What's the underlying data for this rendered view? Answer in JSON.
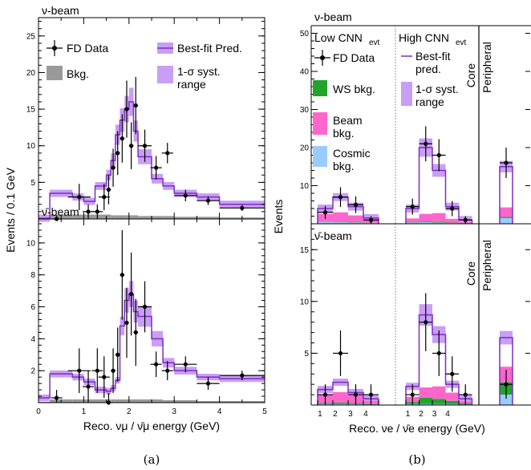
{
  "chart_data": [
    {
      "id": "a",
      "type": "step-histogram with points",
      "caption": "(a)",
      "xlabel": "Reco. νμ / ν̄μ energy (GeV)",
      "ylabel": "Events / 0.1 GeV",
      "xlim": [
        0,
        5
      ],
      "xticks": [
        "0",
        "1",
        "2",
        "3",
        "4",
        "5"
      ],
      "legend": {
        "data": "FD Data",
        "pred": "Best-fit Pred.",
        "bkg": "Bkg.",
        "syst": "1-σ syst.",
        "syst2": "range"
      },
      "panels": [
        {
          "beam": "ν-beam",
          "ylim": [
            0,
            27.5
          ],
          "yticks": [
            5,
            10,
            15,
            20,
            25
          ],
          "edges": [
            0.0,
            0.25,
            0.75,
            1.0,
            1.25,
            1.5,
            1.6,
            1.7,
            1.8,
            1.9,
            2.0,
            2.1,
            2.2,
            2.5,
            2.75,
            3.0,
            3.5,
            4.0,
            5.0
          ],
          "pred": [
            0.1,
            3.5,
            3.0,
            2.4,
            4.5,
            6.0,
            8.0,
            11.5,
            13.5,
            15.0,
            16.0,
            12.0,
            8.5,
            5.5,
            4.5,
            3.5,
            3.0,
            2.0
          ],
          "bkg": [
            0.05,
            0.6,
            0.6,
            0.6,
            0.6,
            0.6,
            0.5,
            0.5,
            0.5,
            0.5,
            0.5,
            0.5,
            0.4,
            0.4,
            0.4,
            0.3,
            0.3,
            0.2
          ],
          "data_x": [
            0.4,
            0.9,
            1.1,
            1.3,
            1.45,
            1.55,
            1.65,
            1.75,
            1.85,
            1.95,
            2.05,
            2.15,
            2.35,
            2.6,
            2.85,
            3.25,
            3.75,
            4.5
          ],
          "data_y": [
            0.0,
            3.0,
            1.0,
            1.0,
            3.0,
            4.0,
            7.0,
            9.0,
            11.0,
            15.0,
            10.0,
            15.5,
            10.0,
            7.0,
            9.0,
            3.2,
            2.5,
            1.5
          ],
          "data_err": [
            0.5,
            1.8,
            1.0,
            1.0,
            1.8,
            2.0,
            2.6,
            3.0,
            3.3,
            3.9,
            3.2,
            3.9,
            2.2,
            1.6,
            1.4,
            0.8,
            0.6,
            0.4
          ]
        },
        {
          "beam": "ν̄-beam",
          "ylim": [
            0,
            11.5
          ],
          "yticks": [
            2,
            4,
            6,
            8,
            10
          ],
          "edges": [
            0.0,
            0.25,
            0.75,
            1.0,
            1.25,
            1.5,
            1.6,
            1.7,
            1.8,
            1.9,
            2.0,
            2.1,
            2.2,
            2.5,
            2.75,
            3.0,
            3.5,
            4.0,
            5.0
          ],
          "pred": [
            0.3,
            1.8,
            1.6,
            1.3,
            0.8,
            0.7,
            0.9,
            1.4,
            4.8,
            6.4,
            6.8,
            5.7,
            5.4,
            4.0,
            2.5,
            2.0,
            1.6,
            1.5
          ],
          "bkg": [
            0.05,
            0.2,
            0.2,
            0.2,
            0.2,
            0.2,
            0.2,
            0.2,
            0.2,
            0.2,
            0.2,
            0.2,
            0.2,
            0.2,
            0.15,
            0.15,
            0.1,
            0.1
          ],
          "data_x": [
            0.4,
            0.9,
            1.1,
            1.3,
            1.45,
            1.55,
            1.65,
            1.75,
            1.85,
            1.95,
            2.05,
            2.15,
            2.35,
            2.6,
            2.85,
            3.25,
            3.75,
            4.5
          ],
          "data_y": [
            0.3,
            2.0,
            1.0,
            2.0,
            1.6,
            0.0,
            2.0,
            3.0,
            8.0,
            5.0,
            6.8,
            4.4,
            6.0,
            2.4,
            2.0,
            2.4,
            1.2,
            1.7
          ],
          "data_err": [
            0.5,
            1.4,
            1.0,
            1.4,
            1.3,
            0.6,
            1.4,
            1.7,
            2.8,
            2.2,
            2.6,
            2.1,
            1.6,
            0.8,
            0.6,
            0.5,
            0.4,
            0.3
          ]
        }
      ]
    },
    {
      "id": "b",
      "type": "step-histogram with points",
      "caption": "(b)",
      "xlabel": "Reco. νe / ν̄e energy (GeV)",
      "ylabel": "Events",
      "xticks": [
        "1",
        "2",
        "3",
        "4"
      ],
      "region_labels": {
        "low": "Low CNN",
        "low_sub": "evt",
        "high": "High CNN",
        "high_sub": "evt",
        "core": "Core",
        "peripheral": "Peripheral"
      },
      "legend": {
        "data": "FD Data",
        "pred": "Best-fit",
        "pred2": "pred.",
        "syst": "1-σ syst.",
        "syst2": "range",
        "ws": "WS bkg.",
        "beam": "Beam",
        "beam2": "bkg.",
        "cosmic": "Cosmic",
        "cosmic2": "bkg."
      },
      "colors": {
        "pred": "#7b2fbe",
        "syst": "#c99ef5",
        "ws": "#22a32a",
        "beam": "#ff66cc",
        "cosmic": "#99ccff",
        "bkg": "#999999"
      },
      "panels": [
        {
          "beam": "ν-beam",
          "ylim": [
            0,
            52
          ],
          "yticks": [
            10,
            20,
            30,
            40,
            50
          ],
          "low": {
            "pred": [
              4.0,
              7.0,
              4.5,
              1.5
            ],
            "beam": [
              2.0,
              2.5,
              1.8,
              0.7
            ],
            "ws": [
              0.1,
              0.1,
              0.1,
              0.05
            ],
            "cosmic": [
              0.5,
              0.4,
              0.3,
              0.2
            ],
            "data_y": [
              3.0,
              7.0,
              5.0,
              1.0
            ],
            "data_err": [
              1.7,
              2.6,
              2.2,
              1.0
            ]
          },
          "high": {
            "pred": [
              4.0,
              20.0,
              14.0,
              4.5,
              1.0
            ],
            "beam": [
              1.0,
              2.0,
              2.3,
              1.0,
              0.3
            ],
            "ws": [
              0.1,
              0.2,
              0.2,
              0.1,
              0.05
            ],
            "cosmic": [
              0.3,
              0.4,
              0.3,
              0.2,
              0.1
            ],
            "data_y": [
              4.5,
              21.0,
              18.0,
              4.0,
              1.0
            ],
            "data_err": [
              2.1,
              4.6,
              4.2,
              2.0,
              1.0
            ]
          },
          "peripheral": {
            "pred": 15.0,
            "beam": 2.5,
            "ws": 0.3,
            "cosmic": 1.5,
            "data_y": 16.0,
            "data_err": 4.0
          }
        },
        {
          "beam": "ν̄-beam",
          "ylim": [
            0,
            17.5
          ],
          "yticks": [
            5,
            10,
            15
          ],
          "low": {
            "pred": [
              1.5,
              2.2,
              1.2,
              0.6
            ],
            "beam": [
              0.8,
              1.0,
              0.7,
              0.3
            ],
            "ws": [
              0.1,
              0.15,
              0.1,
              0.05
            ],
            "cosmic": [
              0.1,
              0.1,
              0.1,
              0.05
            ],
            "data_y": [
              1.0,
              5.0,
              1.0,
              1.0
            ],
            "data_err": [
              1.0,
              2.2,
              1.0,
              1.0
            ]
          },
          "high": {
            "pred": [
              1.8,
              8.7,
              6.8,
              2.0,
              0.6
            ],
            "beam": [
              0.5,
              1.0,
              1.2,
              0.8,
              0.2
            ],
            "ws": [
              0.2,
              0.6,
              0.5,
              0.3,
              0.1
            ],
            "cosmic": [
              0.1,
              0.1,
              0.1,
              0.1,
              0.05
            ],
            "data_y": [
              1.0,
              8.0,
              5.0,
              3.0,
              1.0
            ],
            "data_err": [
              1.0,
              2.8,
              2.2,
              1.7,
              1.0
            ]
          },
          "peripheral": {
            "pred": 6.5,
            "beam": 1.5,
            "ws": 1.2,
            "cosmic": 1.0,
            "data_y": 2.0,
            "data_err": 1.4
          }
        }
      ]
    }
  ]
}
